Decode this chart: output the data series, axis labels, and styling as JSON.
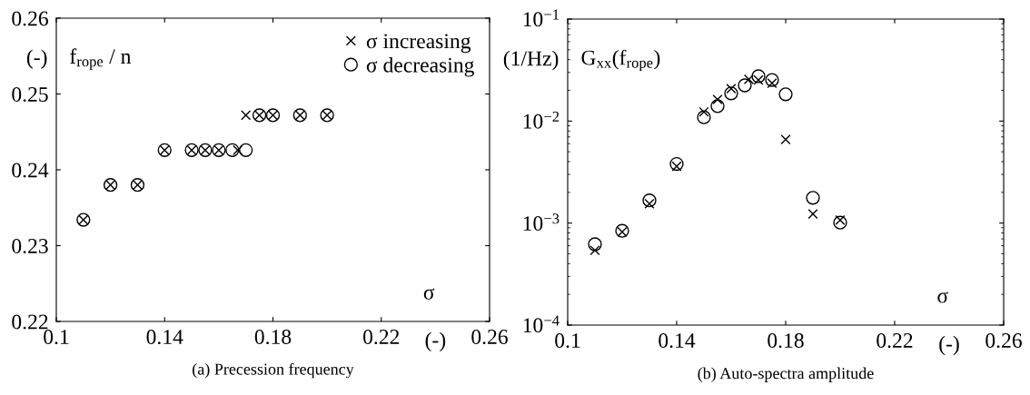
{
  "chart_data": [
    {
      "type": "scatter",
      "title": "(a) Precession frequency",
      "xlabel": "(-)",
      "ylabel": "(-)",
      "annotations": [
        "f$_{rope}$ / n",
        "σ"
      ],
      "series": [
        {
          "name": "σ increasing",
          "color": "#000000",
          "marker": "cross",
          "x": [
            0.11,
            0.12,
            0.13,
            0.14,
            0.15,
            0.155,
            0.16,
            0.167,
            0.17,
            0.175,
            0.18,
            0.19,
            0.2
          ],
          "values": [
            0.2334,
            0.238,
            0.238,
            0.2426,
            0.2426,
            0.2426,
            0.2426,
            0.2426,
            0.2472,
            0.2472,
            0.2472,
            0.2472,
            0.2472
          ]
        },
        {
          "name": "σ decreasing",
          "color": "#000000",
          "marker": "circle",
          "x": [
            0.11,
            0.12,
            0.13,
            0.14,
            0.15,
            0.155,
            0.16,
            0.165,
            0.17,
            0.175,
            0.18,
            0.19,
            0.2
          ],
          "values": [
            0.2334,
            0.238,
            0.238,
            0.2426,
            0.2426,
            0.2426,
            0.2426,
            0.2426,
            0.2426,
            0.2472,
            0.2472,
            0.2472,
            0.2472
          ]
        }
      ],
      "xlim": [
        0.1,
        0.26
      ],
      "xticks": [
        {
          "value": 0.1,
          "label": "0.1"
        },
        0.14,
        0.18,
        0.22,
        0.26
      ],
      "ylim": [
        0.22,
        0.26
      ],
      "yticks": [
        0.22,
        0.23,
        0.24,
        0.25,
        0.26
      ],
      "grid": false,
      "legend": "top right"
    },
    {
      "type": "scatter",
      "title": "(b) Auto-spectra amplitude",
      "xlabel": "(-)",
      "ylabel": "(1/Hz)",
      "annotations": [
        "G$_{xx}$(f$_{rope}$)",
        "σ"
      ],
      "series": [
        {
          "color": "#000000",
          "marker": "cross",
          "x": [
            0.11,
            0.12,
            0.13,
            0.14,
            0.15,
            0.155,
            0.16,
            0.1665,
            0.17,
            0.175,
            0.18,
            0.19,
            0.2
          ],
          "values": [
            0.00054,
            0.00082,
            0.00155,
            0.0036,
            0.0123,
            0.0163,
            0.0208,
            0.0257,
            0.0253,
            0.0235,
            0.0066,
            0.00123,
            0.00107
          ]
        },
        {
          "color": "#000000",
          "marker": "circle",
          "x": [
            0.11,
            0.12,
            0.13,
            0.14,
            0.15,
            0.155,
            0.16,
            0.165,
            0.17,
            0.175,
            0.18,
            0.19,
            0.2
          ],
          "values": [
            0.00062,
            0.00084,
            0.00167,
            0.0038,
            0.0109,
            0.014,
            0.0187,
            0.0224,
            0.0275,
            0.0253,
            0.0183,
            0.00177,
            0.00101
          ]
        }
      ],
      "xlim": [
        0.1,
        0.26
      ],
      "xticks": [
        {
          "value": 0.1,
          "label": "0.1"
        },
        0.14,
        0.18,
        0.22,
        0.26
      ],
      "ylim": [
        0.0001,
        0.1
      ],
      "yticks": [
        {
          "value": 0.0001,
          "label": "10$^{−4}$"
        },
        {
          "value": 0.001,
          "label": "10$^{−3}$"
        },
        {
          "value": 0.01,
          "label": "10$^{−2}$"
        },
        {
          "value": 0.1,
          "label": "10$^{−1}$"
        }
      ],
      "log": "y",
      "grid": false,
      "legend": false
    }
  ]
}
